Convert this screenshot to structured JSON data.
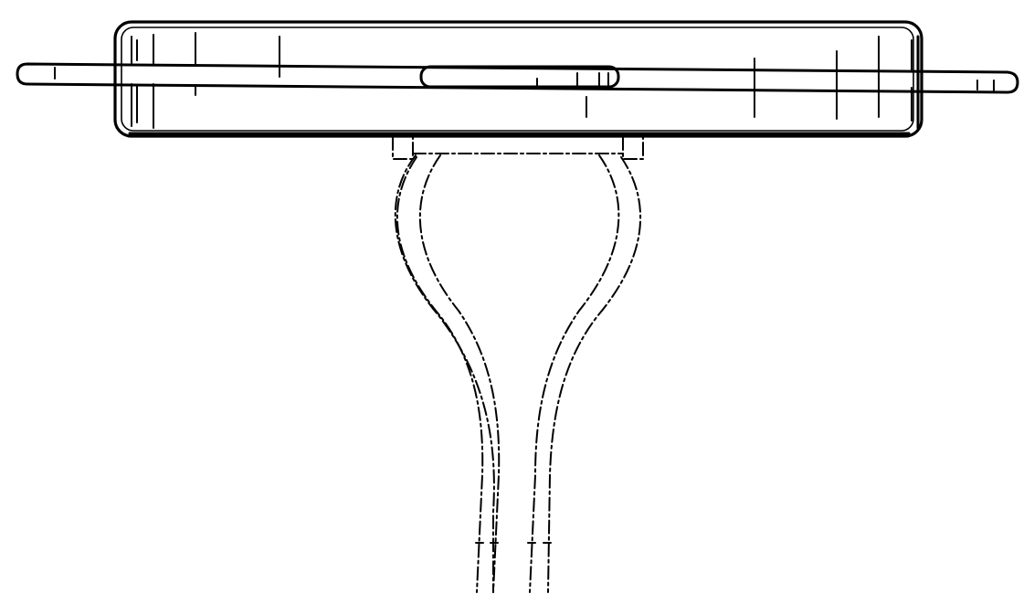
{
  "drawing": {
    "colors": {
      "background": "#ffffff",
      "line": "#000000"
    },
    "line_styles": {
      "solid": "solid",
      "phantom": "dash-dot"
    }
  }
}
